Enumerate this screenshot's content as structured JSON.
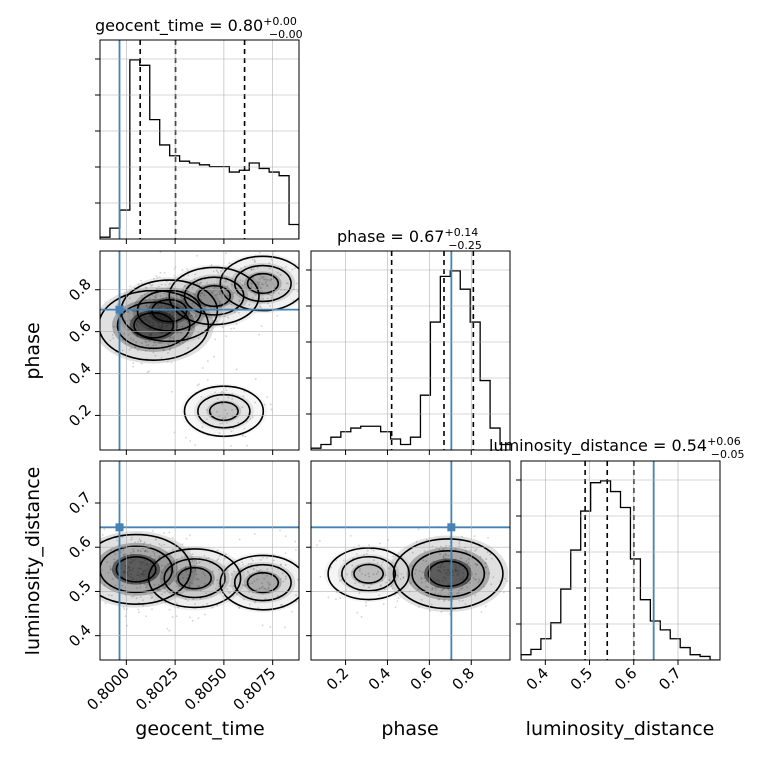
{
  "chart_data": {
    "type": "corner",
    "parameters": [
      "geocent_time",
      "phase",
      "luminosity_distance"
    ],
    "truths": {
      "geocent_time": 0.79965,
      "phase": 0.705,
      "luminosity_distance": 0.645
    },
    "ranges": {
      "geocent_time": [
        0.79865,
        0.80885
      ],
      "phase": [
        0.035,
        0.985
      ],
      "luminosity_distance": [
        0.345,
        0.795
      ]
    },
    "ticks": {
      "geocent_time": {
        "values": [
          0.8,
          0.8025,
          0.805,
          0.8075
        ],
        "labels": [
          "0.8000",
          "0.8025",
          "0.8050",
          "0.8075"
        ]
      },
      "phase": {
        "values": [
          0.2,
          0.4,
          0.6,
          0.8
        ],
        "labels": [
          "0.2",
          "0.4",
          "0.6",
          "0.8"
        ]
      },
      "luminosity_distance": {
        "values": [
          0.4,
          0.5,
          0.6,
          0.7
        ],
        "labels": [
          "0.4",
          "0.5",
          "0.6",
          "0.7"
        ]
      }
    },
    "axis_labels": {
      "x": [
        "geocent_time",
        "phase",
        "luminosity_distance"
      ],
      "y": [
        "",
        "phase",
        "luminosity_distance"
      ]
    },
    "titles": [
      {
        "param": "geocent_time",
        "text": "geocent_time = 0.80",
        "plus": "+0.00",
        "minus": "−0.00"
      },
      {
        "param": "phase",
        "text": "phase = 0.67",
        "plus": "+0.14",
        "minus": "−0.25"
      },
      {
        "param": "luminosity_distance",
        "text": "luminosity_distance = 0.54",
        "plus": "+0.06",
        "minus": "−0.05"
      }
    ],
    "histograms": {
      "geocent_time": {
        "edges": [
          0.79865,
          0.79916,
          0.79967,
          0.80018,
          0.80069,
          0.8012,
          0.80171,
          0.80222,
          0.80273,
          0.80324,
          0.80375,
          0.80426,
          0.80477,
          0.80528,
          0.80579,
          0.8063,
          0.80681,
          0.80732,
          0.80783,
          0.80834,
          0.80885
        ],
        "counts": [
          1,
          6,
          16,
          99,
          96,
          66,
          52,
          46,
          43,
          42,
          41,
          40,
          40,
          37,
          38,
          42,
          39,
          37,
          35,
          8
        ],
        "quantiles": [
          0.80071,
          0.80252,
          0.80606
        ]
      },
      "phase": {
        "edges": [
          0.035,
          0.0825,
          0.13,
          0.1775,
          0.225,
          0.2725,
          0.32,
          0.3675,
          0.415,
          0.4625,
          0.51,
          0.5575,
          0.605,
          0.6525,
          0.7,
          0.7475,
          0.795,
          0.8425,
          0.89,
          0.9375,
          0.985
        ],
        "counts": [
          1,
          3,
          7,
          10,
          12,
          13,
          13,
          10,
          6,
          3,
          7,
          30,
          70,
          95,
          98,
          88,
          70,
          38,
          12,
          3
        ],
        "quantiles": [
          0.42,
          0.67,
          0.81
        ]
      },
      "luminosity_distance": {
        "edges": [
          0.345,
          0.3675,
          0.39,
          0.4125,
          0.435,
          0.4575,
          0.48,
          0.5025,
          0.525,
          0.5475,
          0.57,
          0.5925,
          0.615,
          0.6375,
          0.66,
          0.6825,
          0.705,
          0.7275,
          0.75,
          0.7725,
          0.795
        ],
        "counts": [
          3,
          6,
          12,
          21,
          40,
          62,
          84,
          100,
          101,
          95,
          86,
          57,
          34,
          22,
          17,
          12,
          7,
          3,
          2,
          0
        ],
        "quantiles": [
          0.49,
          0.54,
          0.6
        ]
      }
    },
    "joint_density": {
      "phase_vs_geocent_time": {
        "modes": [
          {
            "x": 0.8014,
            "y": 0.63,
            "weight": 1.0
          },
          {
            "x": 0.8022,
            "y": 0.7,
            "weight": 0.7
          },
          {
            "x": 0.8045,
            "y": 0.77,
            "weight": 0.55
          },
          {
            "x": 0.807,
            "y": 0.83,
            "weight": 0.45
          },
          {
            "x": 0.805,
            "y": 0.22,
            "weight": 0.3
          }
        ]
      },
      "luminosity_distance_vs_geocent_time": {
        "modes": [
          {
            "x": 0.8005,
            "y": 0.55,
            "weight": 1.0
          },
          {
            "x": 0.8035,
            "y": 0.53,
            "weight": 0.6
          },
          {
            "x": 0.807,
            "y": 0.52,
            "weight": 0.45
          }
        ]
      },
      "luminosity_distance_vs_phase": {
        "modes": [
          {
            "x": 0.69,
            "y": 0.54,
            "weight": 1.0
          },
          {
            "x": 0.31,
            "y": 0.54,
            "weight": 0.35
          }
        ]
      }
    }
  }
}
